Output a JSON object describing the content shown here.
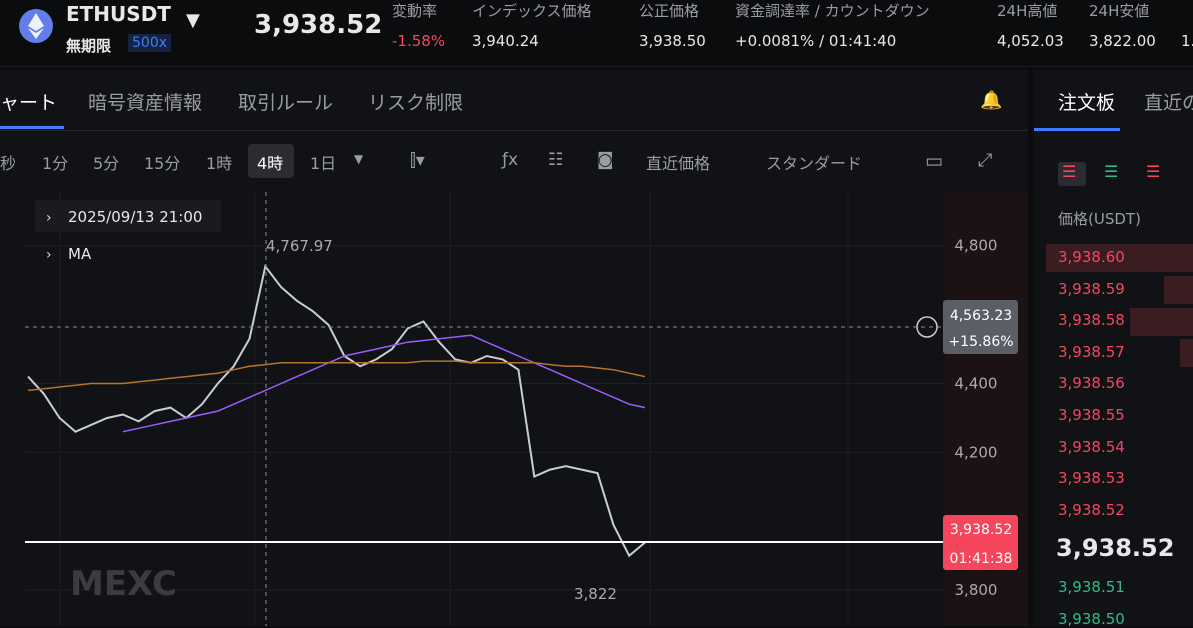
{
  "header": {
    "symbol": "ETHUSDT",
    "contract": "無期限",
    "leverage": "500x",
    "last_price": "3,938.52",
    "stats": [
      {
        "label": "変動率",
        "value": "-1.58%"
      },
      {
        "label": "インデックス価格",
        "value": "3,940.24"
      },
      {
        "label": "公正価格",
        "value": "3,938.50"
      },
      {
        "label": "資金調達率 / カウントダウン",
        "value": "+0.0081% / 01:41:40"
      },
      {
        "label": "24H高値",
        "value": "4,052.03"
      },
      {
        "label": "24H安値",
        "value": "3,822.00"
      },
      {
        "label": "",
        "value": "1."
      }
    ]
  },
  "tabs": [
    "ャート",
    "暗号資産情報",
    "取引ルール",
    "リスク制限"
  ],
  "intervals": [
    "秒",
    "1分",
    "5分",
    "15分",
    "1時",
    "4時",
    "1日"
  ],
  "toolbar": [
    "直近価格",
    "スタンダード"
  ],
  "legend": [
    "2025/09/13 21:00",
    "MA"
  ],
  "chart_data": {
    "type": "line",
    "series": [
      {
        "color": "#c9ccd3",
        "values": [
          4420,
          4370,
          4300,
          4260,
          4280,
          4300,
          4310,
          4290,
          4320,
          4330,
          4300,
          4340,
          4400,
          4450,
          4530,
          4740,
          4680,
          4640,
          4610,
          4570,
          4480,
          4450,
          4470,
          4500,
          4560,
          4580,
          4520,
          4470,
          4460,
          4480,
          4470,
          4440,
          4130,
          4150,
          4160,
          4150,
          4140,
          3990,
          3900,
          3938.52
        ]
      },
      {
        "color": "#9c5bff",
        "values": [
          null,
          null,
          null,
          null,
          null,
          null,
          4260,
          4270,
          4280,
          4290,
          4300,
          4310,
          4320,
          4340,
          4360,
          4380,
          4400,
          4420,
          4440,
          4460,
          4480,
          4490,
          4500,
          4510,
          4520,
          4525,
          4530,
          4535,
          4540,
          4520,
          4500,
          4480,
          4460,
          4440,
          4420,
          4400,
          4380,
          4360,
          4340,
          4330
        ]
      },
      {
        "color": "#b3762b",
        "values": [
          4380,
          4385,
          4390,
          4395,
          4400,
          4400,
          4400,
          4405,
          4410,
          4415,
          4420,
          4425,
          4430,
          4440,
          4450,
          4455,
          4460,
          4460,
          4460,
          4460,
          4460,
          4460,
          4460,
          4460,
          4460,
          4465,
          4465,
          4465,
          4460,
          4460,
          4460,
          4460,
          4460,
          4455,
          4450,
          4450,
          4445,
          4440,
          4430,
          4420
        ]
      }
    ],
    "ylim": [
      3696,
      4956
    ],
    "yticks": [
      {
        "value": 3800,
        "label": "3,800"
      },
      {
        "value": 4200,
        "label": "4,200"
      },
      {
        "value": 4400,
        "label": "4,400"
      },
      {
        "value": 4800,
        "label": "4,800"
      }
    ],
    "annotations": {
      "high": "4,767.97",
      "low": "3,822",
      "crosshair_price": "4,563.23",
      "crosshair_change": "+15.86%",
      "last_price": "3,938.52",
      "countdown": "01:41:38",
      "watermark": "MEXC"
    }
  },
  "orderbook": {
    "tabs": [
      "注文板",
      "直近の"
    ],
    "header": "価格(USDT)",
    "asks": [
      "3,938.60",
      "3,938.59",
      "3,938.58",
      "3,938.57",
      "3,938.56",
      "3,938.55",
      "3,938.54",
      "3,938.53",
      "3,938.52"
    ],
    "mid": "3,938.52",
    "bids": [
      "3,938.51",
      "3,938.50"
    ]
  }
}
